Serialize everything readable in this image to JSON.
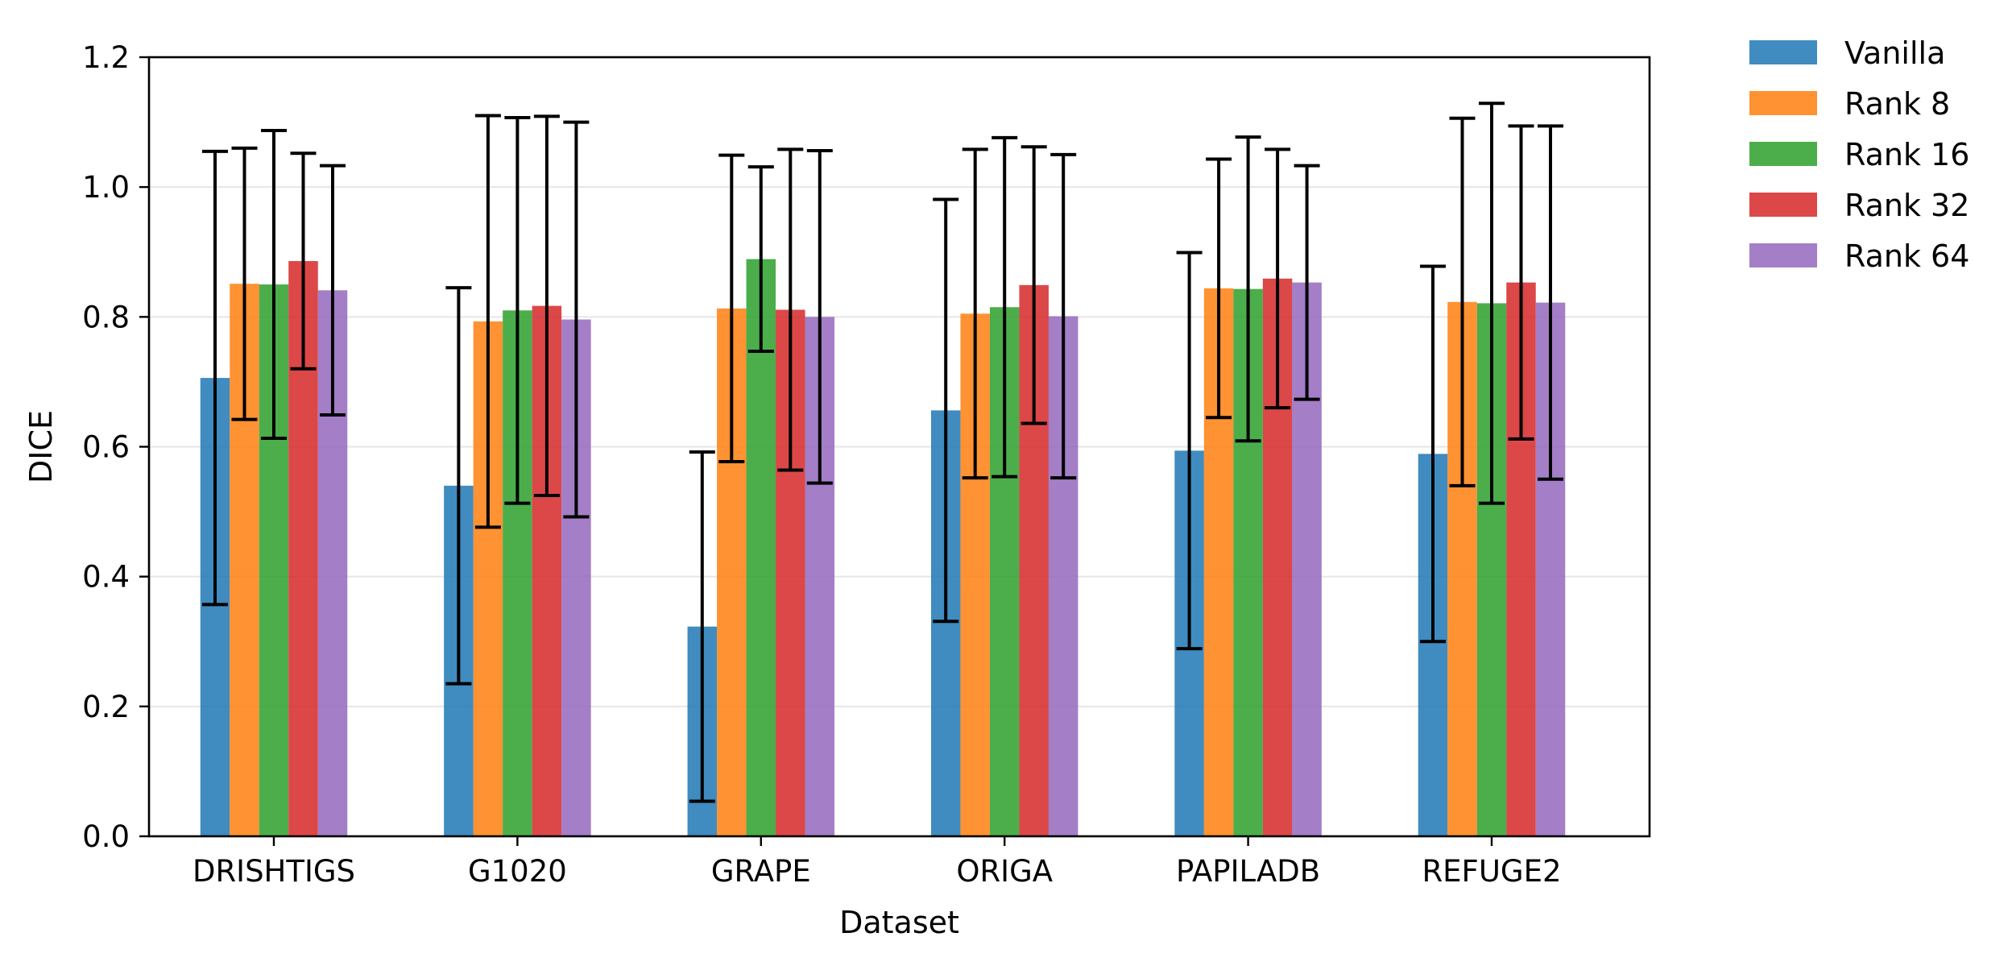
{
  "chart_data": {
    "type": "bar",
    "xlabel": "Dataset",
    "ylabel": "DICE",
    "ylim": [
      0.0,
      1.2
    ],
    "yticks": [
      "0.0",
      "0.2",
      "0.4",
      "0.6",
      "0.8",
      "1.0",
      "1.2"
    ],
    "grid": "horizontal",
    "legend_placement": "outside-top-right",
    "categories": [
      "DRISHTIGS",
      "G1020",
      "GRAPE",
      "ORIGA",
      "PAPILADB",
      "REFUGE2"
    ],
    "series": [
      {
        "name": "Vanilla",
        "color": "#1f77b4",
        "values": [
          0.706,
          0.54,
          0.323,
          0.656,
          0.594,
          0.589
        ],
        "errors": [
          0.349,
          0.305,
          0.269,
          0.325,
          0.305,
          0.289
        ]
      },
      {
        "name": "Rank 8",
        "color": "#ff7f0e",
        "values": [
          0.851,
          0.793,
          0.813,
          0.805,
          0.844,
          0.823
        ],
        "errors": [
          0.209,
          0.317,
          0.236,
          0.253,
          0.199,
          0.283
        ]
      },
      {
        "name": "Rank 16",
        "color": "#2ca02c",
        "values": [
          0.85,
          0.81,
          0.889,
          0.815,
          0.843,
          0.821
        ],
        "errors": [
          0.237,
          0.297,
          0.142,
          0.261,
          0.234,
          0.308
        ]
      },
      {
        "name": "Rank 32",
        "color": "#d62728",
        "values": [
          0.886,
          0.817,
          0.811,
          0.849,
          0.859,
          0.853
        ],
        "errors": [
          0.166,
          0.292,
          0.247,
          0.213,
          0.199,
          0.241
        ]
      },
      {
        "name": "Rank 64",
        "color": "#9467bd",
        "values": [
          0.841,
          0.796,
          0.8,
          0.801,
          0.853,
          0.822
        ],
        "errors": [
          0.192,
          0.304,
          0.256,
          0.249,
          0.18,
          0.272
        ]
      }
    ]
  }
}
